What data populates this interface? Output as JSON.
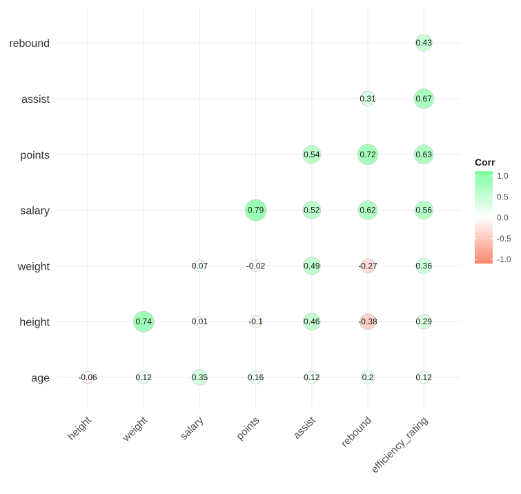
{
  "chart_data": {
    "type": "heatmap",
    "style": "circle correlogram (lower triangle), circle size and color encode correlation",
    "x_categories": [
      "height",
      "weight",
      "salary",
      "points",
      "assist",
      "rebound",
      "efficiency_rating"
    ],
    "y_categories": [
      "age",
      "height",
      "weight",
      "salary",
      "points",
      "assist",
      "rebound"
    ],
    "cells": [
      {
        "x": "height",
        "y": "age",
        "value": -0.06,
        "label": "-0.06"
      },
      {
        "x": "weight",
        "y": "age",
        "value": 0.12,
        "label": "0.12"
      },
      {
        "x": "salary",
        "y": "age",
        "value": 0.35,
        "label": "0.35"
      },
      {
        "x": "points",
        "y": "age",
        "value": 0.16,
        "label": "0.16"
      },
      {
        "x": "assist",
        "y": "age",
        "value": 0.12,
        "label": "0.12"
      },
      {
        "x": "rebound",
        "y": "age",
        "value": 0.2,
        "label": "0.2"
      },
      {
        "x": "efficiency_rating",
        "y": "age",
        "value": 0.12,
        "label": "0.12"
      },
      {
        "x": "weight",
        "y": "height",
        "value": 0.74,
        "label": "0.74"
      },
      {
        "x": "salary",
        "y": "height",
        "value": 0.01,
        "label": "0.01"
      },
      {
        "x": "points",
        "y": "height",
        "value": -0.1,
        "label": "-0.1"
      },
      {
        "x": "assist",
        "y": "height",
        "value": 0.46,
        "label": "0.46"
      },
      {
        "x": "rebound",
        "y": "height",
        "value": -0.38,
        "label": "-0.38"
      },
      {
        "x": "efficiency_rating",
        "y": "height",
        "value": 0.29,
        "label": "0.29"
      },
      {
        "x": "salary",
        "y": "weight",
        "value": 0.07,
        "label": "0.07"
      },
      {
        "x": "points",
        "y": "weight",
        "value": -0.02,
        "label": "-0.02"
      },
      {
        "x": "assist",
        "y": "weight",
        "value": 0.49,
        "label": "0.49"
      },
      {
        "x": "rebound",
        "y": "weight",
        "value": -0.27,
        "label": "-0.27"
      },
      {
        "x": "efficiency_rating",
        "y": "weight",
        "value": 0.36,
        "label": "0.36"
      },
      {
        "x": "points",
        "y": "salary",
        "value": 0.79,
        "label": "0.79"
      },
      {
        "x": "assist",
        "y": "salary",
        "value": 0.52,
        "label": "0.52"
      },
      {
        "x": "rebound",
        "y": "salary",
        "value": 0.62,
        "label": "0.62"
      },
      {
        "x": "efficiency_rating",
        "y": "salary",
        "value": 0.56,
        "label": "0.56"
      },
      {
        "x": "assist",
        "y": "points",
        "value": 0.54,
        "label": "0.54"
      },
      {
        "x": "rebound",
        "y": "points",
        "value": 0.72,
        "label": "0.72"
      },
      {
        "x": "efficiency_rating",
        "y": "points",
        "value": 0.63,
        "label": "0.63"
      },
      {
        "x": "rebound",
        "y": "assist",
        "value": 0.31,
        "label": "0.31"
      },
      {
        "x": "efficiency_rating",
        "y": "assist",
        "value": 0.67,
        "label": "0.67"
      },
      {
        "x": "efficiency_rating",
        "y": "rebound",
        "value": 0.43,
        "label": "0.43"
      }
    ],
    "legend": {
      "title": "Corr",
      "ticks": [
        "1.0",
        "0.5",
        "0.0",
        "-0.5",
        "-1.0"
      ],
      "range": [
        -1,
        1
      ],
      "placement": "right"
    },
    "colors": {
      "high": "#7fffa0",
      "mid": "#ffffff",
      "low": "#f8876f",
      "circle_outline": "#cfcfcf"
    },
    "grid": true
  }
}
